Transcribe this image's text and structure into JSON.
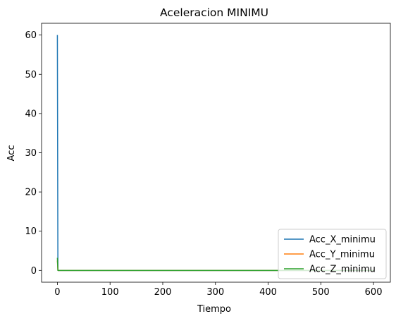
{
  "chart_data": {
    "type": "line",
    "title": "Aceleracion MINIMU",
    "xlabel": "Tiempo",
    "ylabel": "Acc",
    "xlim": [
      -30,
      632
    ],
    "ylim": [
      -3,
      63
    ],
    "xticks": [
      0,
      100,
      200,
      300,
      400,
      500,
      600
    ],
    "yticks": [
      0,
      10,
      20,
      30,
      40,
      50,
      60
    ],
    "grid": false,
    "legend_position": "lower-right",
    "series": [
      {
        "name": "Acc_X_minimu",
        "color": "#1f77b4",
        "x": [
          0,
          1,
          2,
          3,
          600
        ],
        "y": [
          60,
          0,
          0,
          0,
          0
        ]
      },
      {
        "name": "Acc_Y_minimu",
        "color": "#ff7f0e",
        "x": [
          0,
          1,
          2,
          3,
          600
        ],
        "y": [
          2.5,
          0,
          0,
          0,
          0
        ]
      },
      {
        "name": "Acc_Z_minimu",
        "color": "#2ca02c",
        "x": [
          0,
          1,
          2,
          3,
          600
        ],
        "y": [
          3.2,
          0,
          0,
          0,
          0
        ]
      }
    ]
  }
}
